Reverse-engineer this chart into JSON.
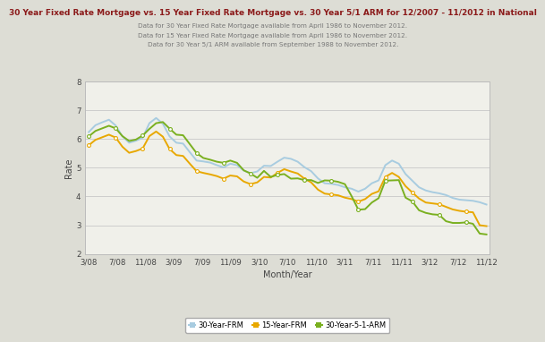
{
  "title": "30 Year Fixed Rate Mortgage vs. 15 Year Fixed Rate Mortgage vs. 30 Year 5/1 ARM for 12/2007 - 11/2012 in National",
  "subtitle1": "Data for 30 Year Fixed Rate Mortgage available from April 1986 to November 2012.",
  "subtitle2": "Data for 15 Year Fixed Rate Mortgage available from April 1986 to November 2012.",
  "subtitle3": "Data for 30 Year 5/1 ARM available from September 1988 to November 2012.",
  "xlabel": "Month/Year",
  "ylabel": "Rate",
  "ylim": [
    2,
    8
  ],
  "background_color": "#ddddd5",
  "plot_bg_color": "#f0f0ea",
  "title_color": "#8b1a1a",
  "subtitle_color": "#777777",
  "tick_labels": [
    "3/08",
    "7/08",
    "11/08",
    "3/09",
    "7/09",
    "11/09",
    "3/10",
    "7/10",
    "11/10",
    "3/11",
    "7/11",
    "11/11",
    "3/12",
    "7/12",
    "11/12"
  ],
  "frm30_color": "#a8cce0",
  "frm15_color": "#e8a800",
  "arm_color": "#7ab020",
  "frm30": [
    6.24,
    6.48,
    6.58,
    6.67,
    6.47,
    6.09,
    5.87,
    5.94,
    6.04,
    6.55,
    6.73,
    6.53,
    6.09,
    5.87,
    5.84,
    5.54,
    5.25,
    5.22,
    5.18,
    5.09,
    5.01,
    5.14,
    5.09,
    4.9,
    4.81,
    4.87,
    5.07,
    5.06,
    5.21,
    5.35,
    5.31,
    5.21,
    5.02,
    4.88,
    4.63,
    4.46,
    4.44,
    4.4,
    4.32,
    4.27,
    4.17,
    4.27,
    4.46,
    4.56,
    5.09,
    5.25,
    5.14,
    4.78,
    4.55,
    4.32,
    4.21,
    4.15,
    4.11,
    4.05,
    3.95,
    3.89,
    3.87,
    3.85,
    3.8,
    3.72
  ],
  "frm15": [
    5.78,
    5.97,
    6.06,
    6.15,
    6.05,
    5.73,
    5.52,
    5.58,
    5.67,
    6.1,
    6.26,
    6.08,
    5.65,
    5.44,
    5.41,
    5.14,
    4.88,
    4.82,
    4.77,
    4.71,
    4.62,
    4.73,
    4.7,
    4.52,
    4.43,
    4.49,
    4.68,
    4.66,
    4.82,
    4.95,
    4.87,
    4.8,
    4.62,
    4.49,
    4.24,
    4.1,
    4.07,
    4.04,
    3.96,
    3.91,
    3.82,
    3.91,
    4.09,
    4.18,
    4.68,
    4.82,
    4.68,
    4.36,
    4.14,
    3.93,
    3.79,
    3.76,
    3.73,
    3.64,
    3.55,
    3.5,
    3.47,
    3.45,
    3.0,
    2.97
  ],
  "arm": [
    6.09,
    6.28,
    6.37,
    6.46,
    6.37,
    6.1,
    5.93,
    5.98,
    6.12,
    6.35,
    6.55,
    6.59,
    6.36,
    6.15,
    6.13,
    5.82,
    5.51,
    5.34,
    5.28,
    5.21,
    5.17,
    5.25,
    5.17,
    4.91,
    4.8,
    4.65,
    4.89,
    4.68,
    4.75,
    4.78,
    4.62,
    4.63,
    4.57,
    4.57,
    4.47,
    4.56,
    4.55,
    4.51,
    4.43,
    4.01,
    3.54,
    3.56,
    3.79,
    3.94,
    4.55,
    4.56,
    4.57,
    3.96,
    3.83,
    3.52,
    3.43,
    3.38,
    3.36,
    3.14,
    3.08,
    3.08,
    3.1,
    3.05,
    2.71,
    2.68
  ],
  "n_points": 60,
  "title_fontsize": 6.5,
  "subtitle_fontsize": 5.2,
  "axis_label_fontsize": 7,
  "tick_fontsize": 6.2,
  "legend_fontsize": 6.0
}
